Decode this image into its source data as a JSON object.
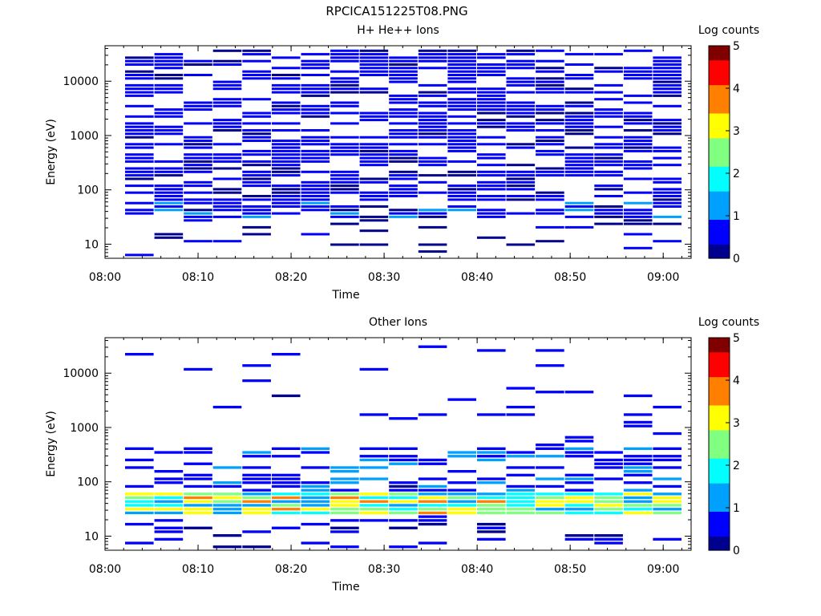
{
  "figure_title": "RPCICA151225T08.PNG",
  "colorscale": [
    "#00008f",
    "#0000ff",
    "#00a0ff",
    "#00ffff",
    "#80ff80",
    "#ffff00",
    "#ff8000",
    "#ff0000",
    "#800000"
  ],
  "chart_data": [
    {
      "type": "heatmap",
      "title": "H+ He++ Ions",
      "xlabel": "Time",
      "ylabel": "Energy (eV)",
      "xlim": [
        "08:00",
        "09:03"
      ],
      "ylim": [
        5.5,
        45000
      ],
      "yscale": "log",
      "x_ticks": [
        "08:00",
        "08:10",
        "08:20",
        "08:30",
        "08:40",
        "08:50",
        "09:00"
      ],
      "y_ticks": [
        "10",
        "100",
        "1000",
        "10000"
      ],
      "colorbar": {
        "label": "Log counts",
        "range": [
          0,
          5
        ],
        "ticks": [
          "0",
          "1",
          "2",
          "3",
          "4",
          "5"
        ]
      },
      "time_bins": [
        "08:02",
        "08:05",
        "08:09",
        "08:12",
        "08:15",
        "08:18",
        "08:21",
        "08:25",
        "08:28",
        "08:31",
        "08:34",
        "08:37",
        "08:41",
        "08:44",
        "08:47",
        "08:50",
        "08:53",
        "08:57",
        "09:00",
        "09:02"
      ],
      "energy_bins": [
        8.5,
        11,
        17,
        24,
        32,
        43,
        58,
        80,
        110,
        155,
        210,
        290,
        400,
        550,
        760,
        1050,
        1450,
        2000,
        2750,
        3800,
        5200,
        7200,
        10000,
        13800,
        19000,
        26000,
        36000
      ],
      "populated_rows": "nearly all energy bins 30 eV to 40000 eV at ~0.3-0.8 log counts; sparse lowest bins",
      "peak_values": [
        {
          "time": "08:05",
          "energy": 45,
          "log_counts": 1.4
        },
        {
          "time": "08:15",
          "energy": 380,
          "log_counts": 1.2
        },
        {
          "time": "08:27",
          "energy": 40,
          "log_counts": 1.3
        },
        {
          "time": "09:01",
          "energy": 40,
          "log_counts": 1.4
        }
      ]
    },
    {
      "type": "heatmap",
      "title": "Other Ions",
      "xlabel": "Time",
      "ylabel": "Energy (eV)",
      "xlim": [
        "08:00",
        "09:03"
      ],
      "ylim": [
        5.5,
        45000
      ],
      "yscale": "log",
      "x_ticks": [
        "08:00",
        "08:10",
        "08:20",
        "08:30",
        "08:40",
        "08:50",
        "09:00"
      ],
      "y_ticks": [
        "10",
        "100",
        "1000",
        "10000"
      ],
      "colorbar": {
        "label": "Log counts",
        "range": [
          0,
          5
        ],
        "ticks": [
          "0",
          "1",
          "2",
          "3",
          "4",
          "5"
        ]
      },
      "band": {
        "energy_range_eV": [
          25,
          60
        ],
        "log_counts_range": [
          1.0,
          3.8
        ]
      },
      "peak_values": [
        {
          "time": "08:06",
          "energy": 50,
          "log_counts": 3.5
        },
        {
          "time": "08:27",
          "energy": 38,
          "log_counts": 3.0
        },
        {
          "time": "08:55",
          "energy": 38,
          "log_counts": 2.8
        },
        {
          "time": "09:01",
          "energy": 38,
          "log_counts": 3.8
        }
      ]
    }
  ]
}
